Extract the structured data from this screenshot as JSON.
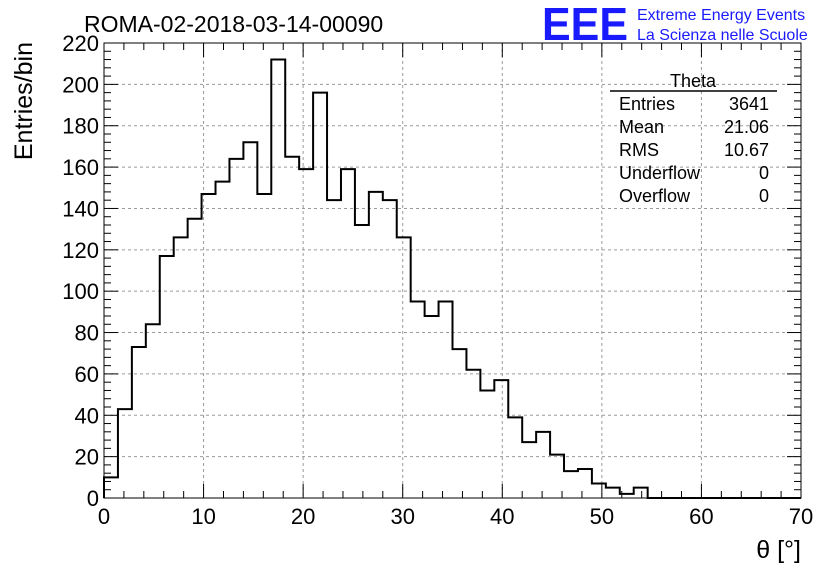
{
  "chart_data": {
    "type": "bar",
    "style": "step-histogram",
    "title": "ROMA-02-2018-03-14-00090",
    "xlabel": "θ [°]",
    "ylabel": "Entries/bin",
    "xlim": [
      0,
      70
    ],
    "ylim": [
      0,
      220
    ],
    "bin_width": 1.4,
    "bins_start": 0,
    "values": [
      10,
      43,
      73,
      84,
      117,
      126,
      135,
      147,
      153,
      164,
      172,
      147,
      212,
      165,
      159,
      196,
      144,
      159,
      132,
      148,
      144,
      126,
      95,
      88,
      95,
      72,
      62,
      52,
      57,
      39,
      27,
      32,
      21,
      13,
      14,
      7,
      5,
      2,
      5,
      0,
      0,
      0,
      0,
      0,
      0,
      0,
      0,
      0,
      0,
      0
    ],
    "x_ticks": [
      "0",
      "10",
      "20",
      "30",
      "40",
      "50",
      "60",
      "70"
    ],
    "y_ticks": [
      "0",
      "20",
      "40",
      "60",
      "80",
      "100",
      "120",
      "140",
      "160",
      "180",
      "200",
      "220"
    ],
    "grid": true,
    "line_color": "#000000",
    "stats_box": {
      "name": "Theta",
      "rows": [
        {
          "label": "Entries",
          "value": "3641"
        },
        {
          "label": "Mean",
          "value": "21.06"
        },
        {
          "label": "RMS",
          "value": "10.67"
        },
        {
          "label": "Underflow",
          "value": "0"
        },
        {
          "label": "Overflow",
          "value": "0"
        }
      ]
    }
  },
  "logo": {
    "mark": "EEE",
    "line1": "Extreme Energy Events",
    "line2": "La Scienza nelle Scuole",
    "color": "#1a1aff"
  }
}
